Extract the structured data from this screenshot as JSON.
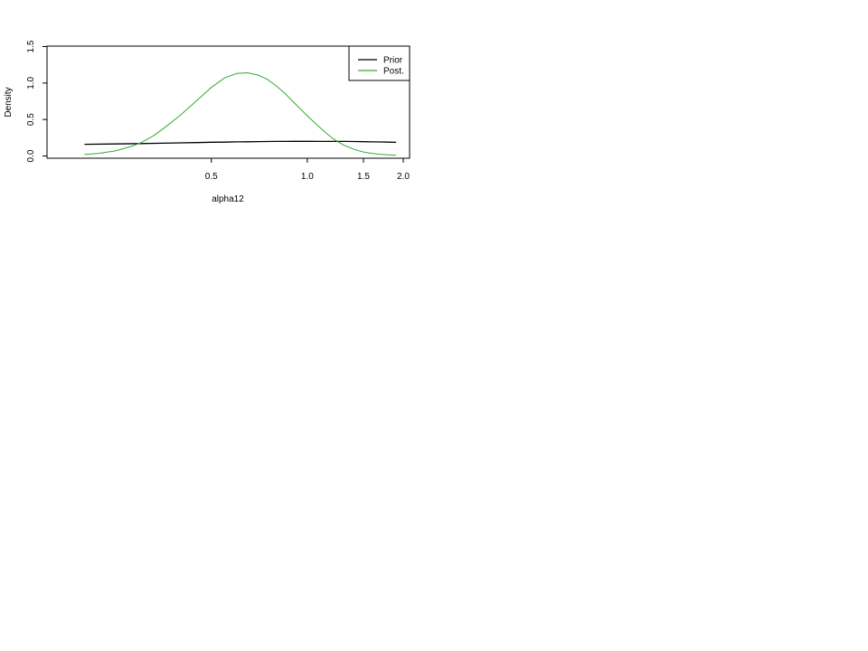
{
  "chart_data": {
    "type": "line",
    "title": "",
    "xlabel": "alpha12",
    "ylabel": "Density",
    "x_scale": "log",
    "xlim": [
      0.175,
      2.0
    ],
    "ylim": [
      0,
      1.5
    ],
    "x_ticks": [
      {
        "value": 0.5,
        "label": "0.5"
      },
      {
        "value": 1.0,
        "label": "1.0"
      },
      {
        "value": 1.5,
        "label": "1.5"
      },
      {
        "value": 2.0,
        "label": "2.0"
      }
    ],
    "y_ticks": [
      {
        "value": 0.0,
        "label": "0.0"
      },
      {
        "value": 0.5,
        "label": "0.5"
      },
      {
        "value": 1.0,
        "label": "1.0"
      },
      {
        "value": 1.5,
        "label": "1.5"
      }
    ],
    "grid": false,
    "legend_position": "top-right",
    "series": [
      {
        "name": "Prior",
        "color": "#000000",
        "x": [
          0.2,
          0.25,
          0.3,
          0.35,
          0.4,
          0.45,
          0.5,
          0.55,
          0.6,
          0.65,
          0.7,
          0.75,
          0.8,
          0.85,
          0.9,
          0.95,
          1.0,
          1.1,
          1.2,
          1.3,
          1.4,
          1.5,
          1.6,
          1.7,
          1.8,
          1.9
        ],
        "y": [
          0.16,
          0.165,
          0.17,
          0.175,
          0.18,
          0.184,
          0.188,
          0.19,
          0.193,
          0.195,
          0.197,
          0.198,
          0.2,
          0.2,
          0.201,
          0.201,
          0.201,
          0.2,
          0.2,
          0.199,
          0.198,
          0.196,
          0.194,
          0.192,
          0.19,
          0.187
        ]
      },
      {
        "name": "Post.",
        "color": "#33aa33",
        "x": [
          0.2,
          0.22,
          0.25,
          0.28,
          0.3,
          0.33,
          0.36,
          0.4,
          0.45,
          0.5,
          0.55,
          0.6,
          0.65,
          0.7,
          0.75,
          0.8,
          0.85,
          0.9,
          1.0,
          1.1,
          1.2,
          1.3,
          1.4,
          1.5,
          1.6,
          1.7,
          1.8,
          1.9
        ],
        "y": [
          0.02,
          0.035,
          0.07,
          0.13,
          0.18,
          0.28,
          0.4,
          0.56,
          0.76,
          0.94,
          1.07,
          1.13,
          1.14,
          1.11,
          1.05,
          0.96,
          0.86,
          0.75,
          0.55,
          0.38,
          0.24,
          0.15,
          0.09,
          0.055,
          0.035,
          0.022,
          0.015,
          0.01
        ]
      }
    ]
  }
}
